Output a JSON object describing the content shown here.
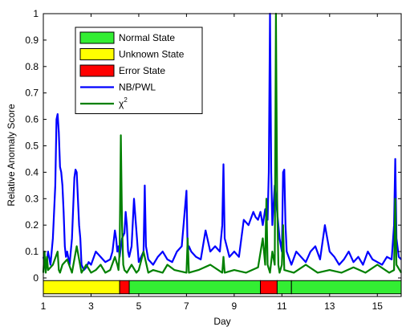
{
  "chart_data": {
    "type": "line",
    "xlabel": "Day",
    "ylabel": "Relative Anomaly Score",
    "xlim": [
      1,
      16
    ],
    "ylim": [
      -0.07,
      1.0
    ],
    "x_ticks": [
      1,
      3,
      5,
      7,
      9,
      11,
      13,
      15
    ],
    "x_tick_labels": [
      "1",
      "3",
      "5",
      "7",
      "9",
      "11",
      "13",
      "15"
    ],
    "y_ticks": [
      0,
      0.1,
      0.2,
      0.3,
      0.4,
      0.5,
      0.6,
      0.7,
      0.8,
      0.9,
      1.0
    ],
    "y_tick_labels": [
      "0",
      "0.1",
      "0.2",
      "0.3",
      "0.4",
      "0.5",
      "0.6",
      "0.7",
      "0.8",
      "0.9",
      "1"
    ],
    "grid": false,
    "legend": {
      "placement": "top-left",
      "entries": [
        {
          "label": "Normal State",
          "kind": "patch",
          "color": "#33ee33"
        },
        {
          "label": "Unknown State",
          "kind": "patch",
          "color": "#ffff00"
        },
        {
          "label": "Error State",
          "kind": "patch",
          "color": "#ff0000"
        },
        {
          "label": "NB/PWL",
          "kind": "line",
          "color": "#0000ff"
        },
        {
          "label": "χ",
          "superscript": "2",
          "kind": "line",
          "color": "#008000"
        }
      ]
    },
    "state_band": {
      "y_range": [
        -0.06,
        -0.01
      ],
      "segments": [
        {
          "state": "Unknown State",
          "x0": 1.0,
          "x1": 4.2
        },
        {
          "state": "Error State",
          "x0": 4.2,
          "x1": 4.6
        },
        {
          "state": "Normal State",
          "x0": 4.6,
          "x1": 10.1
        },
        {
          "state": "Error State",
          "x0": 10.1,
          "x1": 10.8
        },
        {
          "state": "Normal State",
          "x0": 10.8,
          "x1": 11.4
        },
        {
          "state": "Normal State",
          "x0": 11.4,
          "x1": 16.0
        }
      ]
    },
    "series": [
      {
        "name": "NB/PWL",
        "color": "#0000ff",
        "x": [
          1.0,
          1.1,
          1.2,
          1.3,
          1.4,
          1.5,
          1.55,
          1.6,
          1.65,
          1.7,
          1.75,
          1.8,
          1.85,
          1.9,
          1.95,
          2.0,
          2.1,
          2.2,
          2.3,
          2.35,
          2.4,
          2.45,
          2.5,
          2.55,
          2.6,
          2.7,
          2.8,
          2.9,
          3.0,
          3.2,
          3.4,
          3.6,
          3.8,
          3.9,
          4.0,
          4.05,
          4.1,
          4.15,
          4.2,
          4.3,
          4.4,
          4.45,
          4.5,
          4.55,
          4.6,
          4.7,
          4.8,
          5.0,
          5.2,
          5.25,
          5.3,
          5.4,
          5.6,
          5.8,
          6.0,
          6.2,
          6.4,
          6.6,
          6.8,
          7.0,
          7.05,
          7.1,
          7.2,
          7.4,
          7.6,
          7.8,
          8.0,
          8.2,
          8.4,
          8.5,
          8.55,
          8.6,
          8.8,
          9.0,
          9.2,
          9.4,
          9.6,
          9.8,
          9.9,
          10.0,
          10.1,
          10.2,
          10.3,
          10.4,
          10.45,
          10.5,
          10.55,
          10.6,
          10.7,
          10.8,
          10.9,
          11.0,
          11.05,
          11.1,
          11.15,
          11.2,
          11.4,
          11.6,
          11.8,
          12.0,
          12.2,
          12.4,
          12.6,
          12.8,
          13.0,
          13.2,
          13.4,
          13.6,
          13.8,
          14.0,
          14.2,
          14.4,
          14.6,
          14.8,
          15.0,
          15.2,
          15.4,
          15.6,
          15.7,
          15.75,
          15.8,
          15.9,
          16.0
        ],
        "y": [
          0.08,
          0.03,
          0.1,
          0.05,
          0.15,
          0.35,
          0.6,
          0.62,
          0.55,
          0.42,
          0.4,
          0.35,
          0.25,
          0.12,
          0.08,
          0.1,
          0.05,
          0.15,
          0.38,
          0.41,
          0.4,
          0.3,
          0.2,
          0.15,
          0.05,
          0.03,
          0.04,
          0.06,
          0.05,
          0.1,
          0.08,
          0.06,
          0.07,
          0.1,
          0.18,
          0.15,
          0.1,
          0.12,
          0.08,
          0.15,
          0.17,
          0.25,
          0.2,
          0.1,
          0.08,
          0.12,
          0.3,
          0.06,
          0.1,
          0.35,
          0.12,
          0.07,
          0.05,
          0.08,
          0.1,
          0.07,
          0.06,
          0.1,
          0.12,
          0.33,
          0.1,
          0.12,
          0.1,
          0.08,
          0.07,
          0.18,
          0.1,
          0.12,
          0.1,
          0.2,
          0.43,
          0.15,
          0.08,
          0.1,
          0.08,
          0.22,
          0.2,
          0.25,
          0.23,
          0.22,
          0.25,
          0.2,
          0.26,
          0.22,
          0.4,
          1.0,
          0.4,
          0.2,
          0.35,
          0.25,
          0.15,
          0.1,
          0.4,
          0.41,
          0.2,
          0.1,
          0.05,
          0.1,
          0.08,
          0.06,
          0.1,
          0.12,
          0.07,
          0.2,
          0.1,
          0.08,
          0.05,
          0.07,
          0.1,
          0.06,
          0.08,
          0.05,
          0.1,
          0.07,
          0.06,
          0.05,
          0.08,
          0.07,
          0.2,
          0.45,
          0.15,
          0.08,
          0.07
        ]
      },
      {
        "name": "χ²",
        "color": "#008000",
        "x": [
          1.0,
          1.05,
          1.1,
          1.15,
          1.2,
          1.4,
          1.6,
          1.65,
          1.7,
          1.8,
          2.0,
          2.2,
          2.4,
          2.6,
          2.8,
          3.0,
          3.2,
          3.4,
          3.6,
          3.8,
          4.0,
          4.1,
          4.15,
          4.2,
          4.25,
          4.3,
          4.35,
          4.4,
          4.5,
          4.7,
          4.9,
          5.0,
          5.2,
          5.4,
          5.6,
          6.0,
          6.2,
          6.5,
          7.0,
          7.05,
          7.1,
          7.5,
          8.0,
          8.5,
          8.55,
          8.6,
          9.0,
          9.5,
          10.0,
          10.2,
          10.3,
          10.35,
          10.4,
          10.5,
          10.6,
          10.7,
          10.75,
          10.8,
          10.85,
          10.9,
          11.0,
          11.05,
          11.1,
          11.5,
          12.0,
          12.5,
          13.0,
          13.5,
          14.0,
          14.5,
          15.0,
          15.5,
          15.7,
          15.75,
          15.8,
          16.0
        ],
        "y": [
          0.02,
          0.1,
          0.02,
          0.08,
          0.03,
          0.05,
          0.1,
          0.03,
          0.02,
          0.05,
          0.07,
          0.02,
          0.12,
          0.02,
          0.05,
          0.02,
          0.03,
          0.05,
          0.02,
          0.03,
          0.08,
          0.05,
          0.03,
          0.1,
          0.54,
          0.2,
          0.05,
          0.03,
          0.02,
          0.05,
          0.02,
          0.03,
          0.1,
          0.02,
          0.03,
          0.02,
          0.05,
          0.03,
          0.02,
          0.15,
          0.02,
          0.03,
          0.05,
          0.02,
          0.08,
          0.02,
          0.03,
          0.02,
          0.04,
          0.15,
          0.05,
          0.3,
          0.05,
          0.02,
          0.1,
          0.05,
          1.0,
          0.3,
          0.05,
          0.02,
          0.05,
          0.2,
          0.03,
          0.02,
          0.05,
          0.02,
          0.03,
          0.02,
          0.04,
          0.02,
          0.05,
          0.02,
          0.03,
          0.3,
          0.05,
          0.02
        ]
      }
    ]
  }
}
